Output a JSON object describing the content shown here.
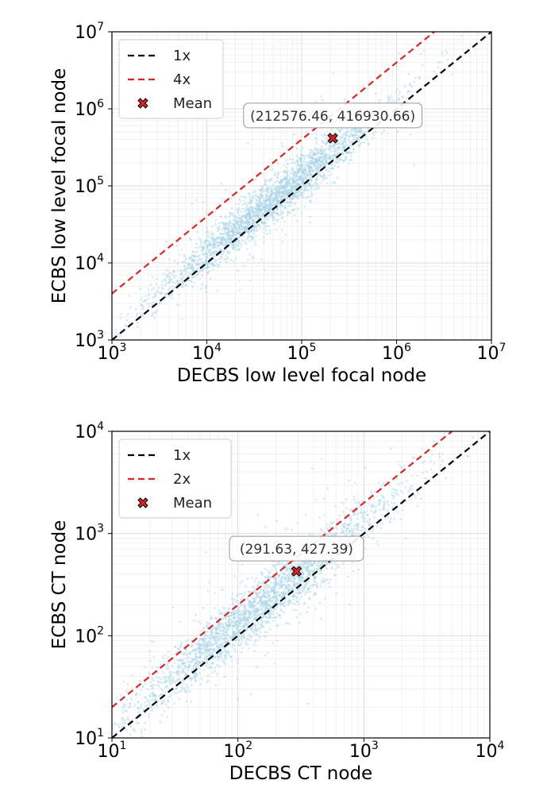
{
  "chart_data": [
    {
      "type": "scatter",
      "xlabel": "DECBS low level focal node",
      "ylabel": "ECBS low level focal node",
      "xscale": "log",
      "yscale": "log",
      "xlim": [
        1000,
        10000000
      ],
      "ylim": [
        1000,
        10000000
      ],
      "xticks": [
        {
          "base": "10",
          "exp": "3"
        },
        {
          "base": "10",
          "exp": "4"
        },
        {
          "base": "10",
          "exp": "5"
        },
        {
          "base": "10",
          "exp": "6"
        },
        {
          "base": "10",
          "exp": "7"
        }
      ],
      "yticks": [
        {
          "base": "10",
          "exp": "3"
        },
        {
          "base": "10",
          "exp": "4"
        },
        {
          "base": "10",
          "exp": "5"
        },
        {
          "base": "10",
          "exp": "6"
        },
        {
          "base": "10",
          "exp": "7"
        }
      ],
      "grid": true,
      "legend_position": "top-left",
      "series": [
        {
          "name": "1x",
          "kind": "line",
          "factor": 1,
          "color": "#000000",
          "dashed": true
        },
        {
          "name": "4x",
          "kind": "line",
          "factor": 4,
          "color": "#d62728",
          "dashed": true
        },
        {
          "name": "Mean",
          "kind": "marker",
          "x": 212576.46,
          "y": 416930.66,
          "color": "#d62728"
        }
      ],
      "point_cloud": {
        "color": "#a6d2e6",
        "x_center": 50000,
        "x_spread_decades": 1.5,
        "typical_ratio": 1.3
      },
      "annotation": {
        "text": "(212576.46, 416930.66)",
        "x": 212576.46,
        "y": 416930.66
      }
    },
    {
      "type": "scatter",
      "xlabel": "DECBS CT node",
      "ylabel": "ECBS CT node",
      "xscale": "log",
      "yscale": "log",
      "xlim": [
        10,
        10000
      ],
      "ylim": [
        10,
        10000
      ],
      "xticks": [
        {
          "base": "10",
          "exp": "1"
        },
        {
          "base": "10",
          "exp": "2"
        },
        {
          "base": "10",
          "exp": "3"
        },
        {
          "base": "10",
          "exp": "4"
        }
      ],
      "yticks": [
        {
          "base": "10",
          "exp": "1"
        },
        {
          "base": "10",
          "exp": "2"
        },
        {
          "base": "10",
          "exp": "3"
        },
        {
          "base": "10",
          "exp": "4"
        }
      ],
      "grid": true,
      "legend_position": "top-left",
      "series": [
        {
          "name": "1x",
          "kind": "line",
          "factor": 1,
          "color": "#000000",
          "dashed": true
        },
        {
          "name": "2x",
          "kind": "line",
          "factor": 2,
          "color": "#d62728",
          "dashed": true
        },
        {
          "name": "Mean",
          "kind": "marker",
          "x": 291.63,
          "y": 427.39,
          "color": "#d62728"
        }
      ],
      "point_cloud": {
        "color": "#a6d2e6",
        "x_center": 150,
        "x_spread_decades": 1.3,
        "typical_ratio": 1.3
      },
      "annotation": {
        "text": "(291.63, 427.39)",
        "x": 291.63,
        "y": 427.39
      }
    }
  ]
}
